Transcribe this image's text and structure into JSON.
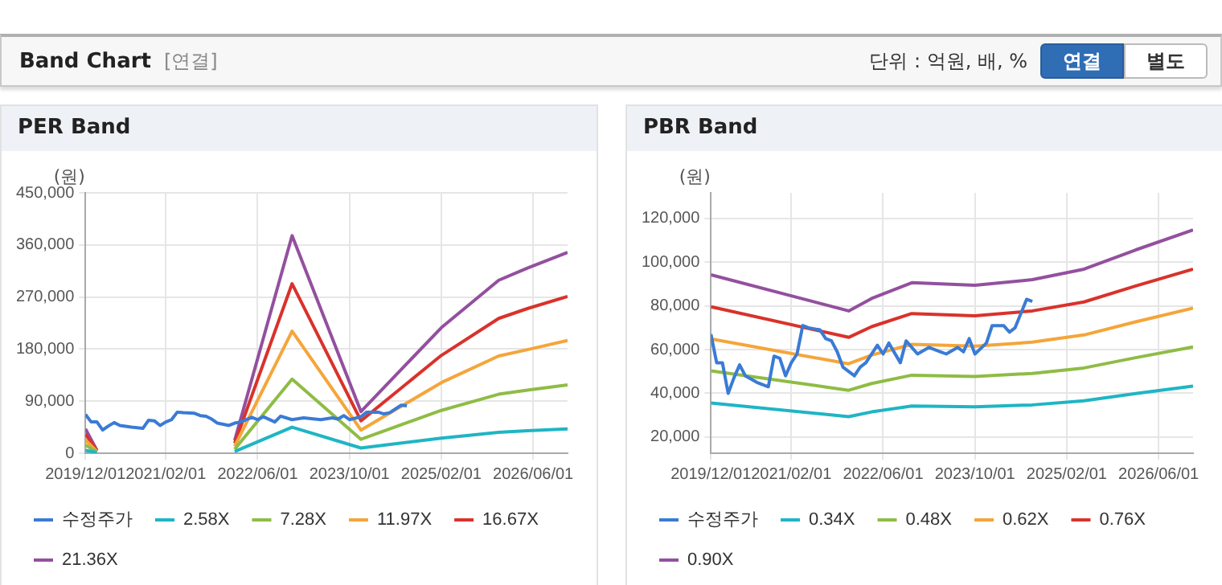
{
  "chart_data": [
    {
      "type": "other",
      "title": "Band Chart",
      "subtitle": "[연결]",
      "annotations": [
        "단위 : 억원, 배, %",
        "연결",
        "별도"
      ]
    },
    {
      "type": "line",
      "title": "PER Band",
      "ylabel": "(원)",
      "grid": true,
      "legend": "bottom",
      "marker": "none",
      "line_style": "solid",
      "xlim": [
        "2019-12-01",
        "2026-12-01"
      ],
      "xticks": [
        {
          "value": "2019-12-01",
          "label": "2019/12/01"
        },
        {
          "value": "2021-02-01",
          "label": "2021/02/01"
        },
        {
          "value": "2022-06-01",
          "label": "2022/06/01"
        },
        {
          "value": "2023-10-01",
          "label": "2023/10/01"
        },
        {
          "value": "2025-02-01",
          "label": "2025/02/01"
        },
        {
          "value": "2026-06-01",
          "label": "2026/06/01"
        }
      ],
      "ylim": [
        0,
        450000
      ],
      "yticks": [
        {
          "value": 0,
          "label": "0"
        },
        {
          "value": 90000,
          "label": "90,000"
        },
        {
          "value": 180000,
          "label": "180,000"
        },
        {
          "value": 270000,
          "label": "270,000"
        },
        {
          "value": 360000,
          "label": "360,000"
        },
        {
          "value": 450000,
          "label": "450,000"
        }
      ],
      "series": [
        {
          "name": "수정주가",
          "color": "#3a7bd5",
          "x": [
            "2019-12",
            "2020-01",
            "2020-02",
            "2020-03",
            "2020-04",
            "2020-05",
            "2020-06",
            "2020-08",
            "2020-10",
            "2020-11",
            "2020-12",
            "2021-01",
            "2021-02",
            "2021-03",
            "2021-04",
            "2021-05",
            "2021-07",
            "2021-08",
            "2021-09",
            "2021-10",
            "2021-11",
            "2022-01",
            "2022-02",
            "2022-03",
            "2022-05",
            "2022-06",
            "2022-07",
            "2022-09",
            "2022-10",
            "2022-12",
            "2023-02",
            "2023-04",
            "2023-05",
            "2023-07",
            "2023-08",
            "2023-09",
            "2023-10",
            "2023-12",
            "2024-01",
            "2024-03",
            "2024-04",
            "2024-05",
            "2024-07",
            "2024-08"
          ],
          "values": [
            67000,
            54000,
            54000,
            40000,
            47000,
            53000,
            48000,
            45000,
            43000,
            57000,
            56000,
            48000,
            54000,
            58000,
            71000,
            70000,
            69000,
            65000,
            64000,
            59000,
            52000,
            48000,
            52000,
            54000,
            62000,
            58000,
            63000,
            54000,
            64000,
            58000,
            61000,
            59000,
            58000,
            61000,
            59000,
            65000,
            58000,
            63000,
            71000,
            71000,
            68000,
            70000,
            83000,
            82000
          ]
        },
        {
          "name": "2.58X",
          "color": "#1fb5c4",
          "x": [
            "2019-12",
            "2020-02",
            "2020-03",
            "2022-02",
            "2022-12",
            "2023-12",
            "2025-02",
            "2025-12",
            "2026-05",
            "2026-12"
          ],
          "values": [
            5000,
            1000,
            null,
            3000,
            45000,
            9000,
            26000,
            36000,
            39000,
            42000
          ]
        },
        {
          "name": "7.28X",
          "color": "#8fbc45",
          "x": [
            "2019-12",
            "2020-02",
            "2020-03",
            "2022-02",
            "2022-12",
            "2023-12",
            "2025-02",
            "2025-12",
            "2026-05",
            "2026-12"
          ],
          "values": [
            14000,
            2000,
            null,
            7000,
            128000,
            24000,
            74000,
            102000,
            109000,
            118000
          ]
        },
        {
          "name": "11.97X",
          "color": "#f5a53a",
          "x": [
            "2019-12",
            "2020-02",
            "2020-03",
            "2022-02",
            "2022-12",
            "2023-12",
            "2025-02",
            "2025-12",
            "2026-05",
            "2026-12"
          ],
          "values": [
            23000,
            3000,
            null,
            12000,
            211000,
            40000,
            122000,
            168000,
            179000,
            195000
          ]
        },
        {
          "name": "16.67X",
          "color": "#d9322b",
          "x": [
            "2019-12",
            "2020-02",
            "2020-03",
            "2022-02",
            "2022-12",
            "2023-12",
            "2025-02",
            "2025-12",
            "2026-05",
            "2026-12"
          ],
          "values": [
            33000,
            4000,
            null,
            17000,
            293000,
            56000,
            169000,
            233000,
            250000,
            271000
          ]
        },
        {
          "name": "21.36X",
          "color": "#93509e",
          "x": [
            "2019-12",
            "2020-02",
            "2020-03",
            "2022-02",
            "2022-12",
            "2023-12",
            "2025-02",
            "2025-12",
            "2026-05",
            "2026-12"
          ],
          "values": [
            42000,
            5000,
            null,
            22000,
            376000,
            72000,
            217000,
            299000,
            320000,
            347000
          ]
        }
      ]
    },
    {
      "type": "line",
      "title": "PBR Band",
      "ylabel": "(원)",
      "grid": true,
      "legend": "bottom",
      "marker": "none",
      "line_style": "solid",
      "xlim": [
        "2019-12-01",
        "2026-12-01"
      ],
      "xticks": [
        {
          "value": "2019-12-01",
          "label": "2019/12/01"
        },
        {
          "value": "2021-02-01",
          "label": "2021/02/01"
        },
        {
          "value": "2022-06-01",
          "label": "2022/06/01"
        },
        {
          "value": "2023-10-01",
          "label": "2023/10/01"
        },
        {
          "value": "2025-02-01",
          "label": "2025/02/01"
        },
        {
          "value": "2026-06-01",
          "label": "2026/06/01"
        }
      ],
      "ylim": [
        12600,
        131700
      ],
      "yticks": [
        {
          "value": 20000,
          "label": "20,000"
        },
        {
          "value": 40000,
          "label": "40,000"
        },
        {
          "value": 60000,
          "label": "60,000"
        },
        {
          "value": 80000,
          "label": "80,000"
        },
        {
          "value": 100000,
          "label": "100,000"
        },
        {
          "value": 120000,
          "label": "120,000"
        }
      ],
      "series": [
        {
          "name": "수정주가",
          "color": "#3a7bd5",
          "x": [
            "2019-12",
            "2020-01",
            "2020-02",
            "2020-03",
            "2020-04",
            "2020-05",
            "2020-06",
            "2020-08",
            "2020-10",
            "2020-11",
            "2020-12",
            "2021-01",
            "2021-02",
            "2021-03",
            "2021-04",
            "2021-05",
            "2021-07",
            "2021-08",
            "2021-09",
            "2021-10",
            "2021-11",
            "2022-01",
            "2022-02",
            "2022-03",
            "2022-05",
            "2022-06",
            "2022-07",
            "2022-09",
            "2022-10",
            "2022-12",
            "2023-02",
            "2023-04",
            "2023-05",
            "2023-07",
            "2023-08",
            "2023-09",
            "2023-10",
            "2023-12",
            "2024-01",
            "2024-03",
            "2024-04",
            "2024-05",
            "2024-07",
            "2024-08"
          ],
          "values": [
            67000,
            54000,
            54000,
            40000,
            47000,
            53000,
            48000,
            45000,
            43000,
            57000,
            56000,
            48000,
            54000,
            58000,
            71000,
            70000,
            69000,
            65000,
            64000,
            59000,
            52000,
            48000,
            52000,
            54000,
            62000,
            58000,
            63000,
            54000,
            64000,
            58000,
            61000,
            59000,
            58000,
            61000,
            59000,
            65000,
            58000,
            63000,
            71000,
            71000,
            68000,
            70000,
            83000,
            82000
          ]
        },
        {
          "name": "0.34X",
          "color": "#1fb5c4",
          "x": [
            "2019-12",
            "2021-12",
            "2022-04",
            "2022-11",
            "2023-10",
            "2024-08",
            "2025-05",
            "2026-02",
            "2026-12"
          ],
          "values": [
            35600,
            29300,
            31500,
            34200,
            33800,
            34700,
            36600,
            39900,
            43300
          ]
        },
        {
          "name": "0.48X",
          "color": "#8fbc45",
          "x": [
            "2019-12",
            "2021-12",
            "2022-04",
            "2022-11",
            "2023-10",
            "2024-08",
            "2025-05",
            "2026-02",
            "2026-12"
          ],
          "values": [
            50300,
            41400,
            44500,
            48300,
            47700,
            49100,
            51600,
            56300,
            61200
          ]
        },
        {
          "name": "0.62X",
          "color": "#f5a53a",
          "x": [
            "2019-12",
            "2021-12",
            "2022-04",
            "2022-11",
            "2023-10",
            "2024-08",
            "2025-05",
            "2026-02",
            "2026-12"
          ],
          "values": [
            64900,
            53500,
            57500,
            62400,
            61600,
            63400,
            66700,
            72700,
            79000
          ]
        },
        {
          "name": "0.76X",
          "color": "#d9322b",
          "x": [
            "2019-12",
            "2021-12",
            "2022-04",
            "2022-11",
            "2023-10",
            "2024-08",
            "2025-05",
            "2026-02",
            "2026-12"
          ],
          "values": [
            79600,
            65600,
            70500,
            76500,
            75500,
            77700,
            81800,
            89100,
            96800
          ]
        },
        {
          "name": "0.90X",
          "color": "#93509e",
          "x": [
            "2019-12",
            "2021-12",
            "2022-04",
            "2022-11",
            "2023-10",
            "2024-08",
            "2025-05",
            "2026-02",
            "2026-12"
          ],
          "values": [
            94200,
            77700,
            83400,
            90600,
            89400,
            92000,
            96800,
            105600,
            114700
          ]
        }
      ]
    }
  ]
}
